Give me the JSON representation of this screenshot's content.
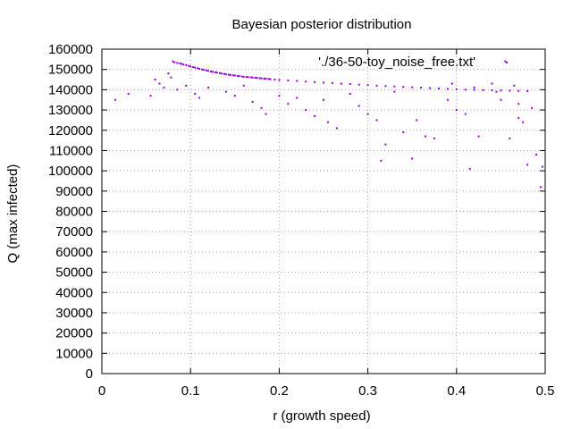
{
  "chart_data": {
    "type": "scatter",
    "title": "Bayesian posterior distribution",
    "xlabel": "r (growth speed)",
    "ylabel": "Q (max infected)",
    "xlim": [
      0,
      0.5
    ],
    "ylim": [
      0,
      160000
    ],
    "xticks": [
      "0",
      "0.1",
      "0.2",
      "0.3",
      "0.4",
      "0.5"
    ],
    "yticks": [
      "0",
      "10000",
      "20000",
      "30000",
      "40000",
      "50000",
      "60000",
      "70000",
      "80000",
      "90000",
      "100000",
      "110000",
      "120000",
      "130000",
      "140000",
      "150000",
      "160000"
    ],
    "grid": true,
    "legend_position": "top-right",
    "point_color": "#9400d3",
    "series": [
      {
        "name": "'./36-50-toy_noise_free.txt'",
        "points": [
          [
            0.08,
            154000
          ],
          [
            0.082,
            153500
          ],
          [
            0.085,
            153200
          ],
          [
            0.088,
            153000
          ],
          [
            0.09,
            152700
          ],
          [
            0.092,
            152400
          ],
          [
            0.095,
            152100
          ],
          [
            0.098,
            151800
          ],
          [
            0.1,
            151500
          ],
          [
            0.103,
            151200
          ],
          [
            0.105,
            150900
          ],
          [
            0.108,
            150600
          ],
          [
            0.11,
            150300
          ],
          [
            0.113,
            150000
          ],
          [
            0.115,
            149800
          ],
          [
            0.118,
            149500
          ],
          [
            0.12,
            149300
          ],
          [
            0.123,
            149000
          ],
          [
            0.125,
            148800
          ],
          [
            0.128,
            148600
          ],
          [
            0.13,
            148400
          ],
          [
            0.133,
            148200
          ],
          [
            0.135,
            148000
          ],
          [
            0.138,
            147800
          ],
          [
            0.14,
            147600
          ],
          [
            0.143,
            147400
          ],
          [
            0.145,
            147300
          ],
          [
            0.148,
            147100
          ],
          [
            0.15,
            147000
          ],
          [
            0.153,
            146800
          ],
          [
            0.155,
            146700
          ],
          [
            0.158,
            146500
          ],
          [
            0.16,
            146400
          ],
          [
            0.163,
            146300
          ],
          [
            0.165,
            146200
          ],
          [
            0.168,
            146100
          ],
          [
            0.17,
            146000
          ],
          [
            0.173,
            145900
          ],
          [
            0.175,
            145800
          ],
          [
            0.178,
            145700
          ],
          [
            0.18,
            145600
          ],
          [
            0.183,
            145500
          ],
          [
            0.185,
            145400
          ],
          [
            0.188,
            145300
          ],
          [
            0.19,
            145200
          ],
          [
            0.195,
            145000
          ],
          [
            0.2,
            144800
          ],
          [
            0.21,
            144600
          ],
          [
            0.22,
            144300
          ],
          [
            0.23,
            144000
          ],
          [
            0.24,
            143800
          ],
          [
            0.25,
            143500
          ],
          [
            0.26,
            143300
          ],
          [
            0.27,
            143000
          ],
          [
            0.28,
            142800
          ],
          [
            0.29,
            142500
          ],
          [
            0.3,
            142300
          ],
          [
            0.31,
            142000
          ],
          [
            0.32,
            141800
          ],
          [
            0.33,
            141600
          ],
          [
            0.34,
            141400
          ],
          [
            0.35,
            141200
          ],
          [
            0.36,
            141000
          ],
          [
            0.37,
            140800
          ],
          [
            0.38,
            140600
          ],
          [
            0.39,
            140400
          ],
          [
            0.4,
            140200
          ],
          [
            0.41,
            140000
          ],
          [
            0.42,
            139900
          ],
          [
            0.43,
            139800
          ],
          [
            0.44,
            139700
          ],
          [
            0.45,
            139600
          ],
          [
            0.46,
            139500
          ],
          [
            0.47,
            139400
          ],
          [
            0.48,
            139300
          ],
          [
            0.015,
            135000
          ],
          [
            0.03,
            138000
          ],
          [
            0.055,
            137000
          ],
          [
            0.06,
            145000
          ],
          [
            0.065,
            143000
          ],
          [
            0.07,
            141000
          ],
          [
            0.075,
            148000
          ],
          [
            0.078,
            146000
          ],
          [
            0.085,
            140000
          ],
          [
            0.095,
            142000
          ],
          [
            0.105,
            138000
          ],
          [
            0.11,
            136000
          ],
          [
            0.12,
            141000
          ],
          [
            0.14,
            139000
          ],
          [
            0.15,
            137000
          ],
          [
            0.16,
            142000
          ],
          [
            0.17,
            134000
          ],
          [
            0.18,
            131000
          ],
          [
            0.185,
            128000
          ],
          [
            0.2,
            137000
          ],
          [
            0.21,
            133000
          ],
          [
            0.22,
            136000
          ],
          [
            0.23,
            130000
          ],
          [
            0.24,
            127000
          ],
          [
            0.25,
            135000
          ],
          [
            0.255,
            124000
          ],
          [
            0.265,
            121000
          ],
          [
            0.28,
            138000
          ],
          [
            0.29,
            132000
          ],
          [
            0.3,
            128000
          ],
          [
            0.31,
            125000
          ],
          [
            0.315,
            105000
          ],
          [
            0.32,
            113000
          ],
          [
            0.33,
            139000
          ],
          [
            0.34,
            119000
          ],
          [
            0.35,
            106000
          ],
          [
            0.355,
            125000
          ],
          [
            0.365,
            117000
          ],
          [
            0.375,
            116000
          ],
          [
            0.39,
            135000
          ],
          [
            0.4,
            130000
          ],
          [
            0.41,
            128000
          ],
          [
            0.415,
            101000
          ],
          [
            0.425,
            117000
          ],
          [
            0.44,
            143000
          ],
          [
            0.45,
            135000
          ],
          [
            0.455,
            154000
          ],
          [
            0.46,
            116000
          ],
          [
            0.465,
            142000
          ],
          [
            0.47,
            126000
          ],
          [
            0.475,
            124000
          ],
          [
            0.48,
            103000
          ],
          [
            0.485,
            131000
          ],
          [
            0.49,
            108000
          ],
          [
            0.495,
            92000
          ],
          [
            0.497,
            102000
          ],
          [
            0.47,
            133000
          ],
          [
            0.445,
            139000
          ],
          [
            0.42,
            141000
          ],
          [
            0.395,
            143000
          ]
        ]
      }
    ]
  }
}
